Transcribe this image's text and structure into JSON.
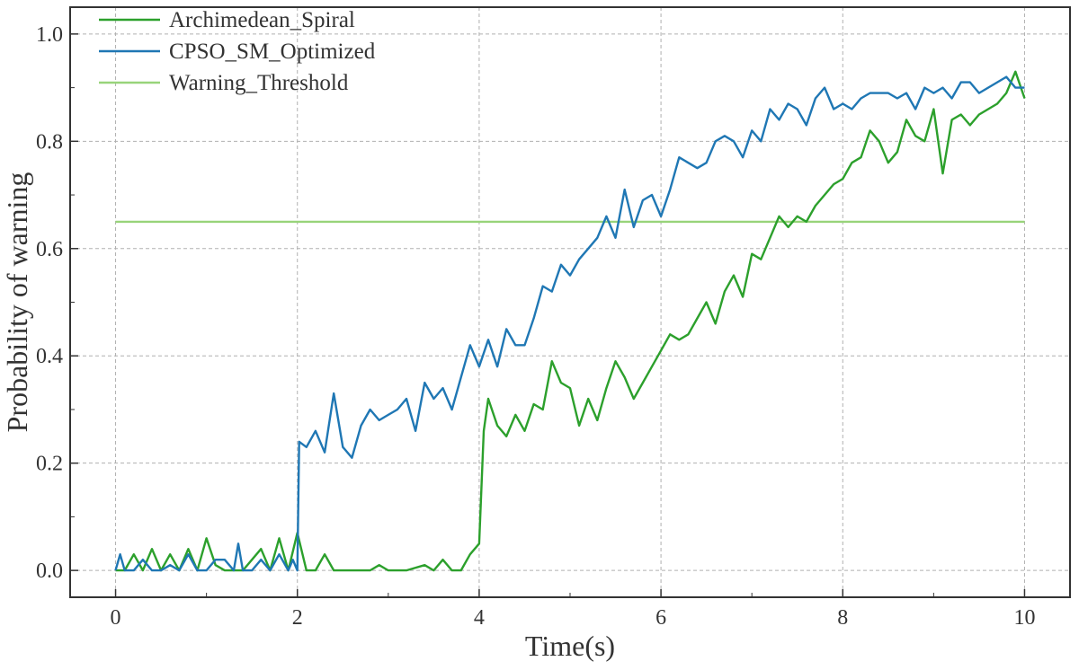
{
  "chart_data": {
    "type": "line",
    "title": "",
    "xlabel": "Time(s)",
    "ylabel": "Probability of warning",
    "xlim": [
      -0.5,
      10.5
    ],
    "ylim": [
      -0.05,
      1.05
    ],
    "xticks": [
      0,
      2,
      4,
      6,
      8,
      10
    ],
    "xtick_labels": [
      "0",
      "2",
      "4",
      "6",
      "8",
      "10"
    ],
    "yticks": [
      0.0,
      0.2,
      0.4,
      0.6,
      0.8,
      1.0
    ],
    "ytick_labels": [
      "0.0",
      "0.2",
      "0.4",
      "0.6",
      "0.8",
      "1.0"
    ],
    "grid": true,
    "legend_position": "top-left",
    "series": [
      {
        "name": "Archimedean_Spiral",
        "color": "#2ca02c",
        "points": [
          [
            0,
            0
          ],
          [
            0.1,
            0
          ],
          [
            0.2,
            0.03
          ],
          [
            0.3,
            0
          ],
          [
            0.4,
            0.04
          ],
          [
            0.5,
            0
          ],
          [
            0.6,
            0.03
          ],
          [
            0.7,
            0
          ],
          [
            0.8,
            0.04
          ],
          [
            0.9,
            0
          ],
          [
            1.0,
            0.06
          ],
          [
            1.1,
            0.01
          ],
          [
            1.2,
            0
          ],
          [
            1.3,
            0
          ],
          [
            1.4,
            0
          ],
          [
            1.5,
            0.02
          ],
          [
            1.6,
            0.04
          ],
          [
            1.7,
            0
          ],
          [
            1.8,
            0.06
          ],
          [
            1.9,
            0
          ],
          [
            2.0,
            0.07
          ],
          [
            2.1,
            0
          ],
          [
            2.2,
            0
          ],
          [
            2.3,
            0.03
          ],
          [
            2.4,
            0
          ],
          [
            2.6,
            0
          ],
          [
            2.8,
            0
          ],
          [
            2.9,
            0.01
          ],
          [
            3.0,
            0
          ],
          [
            3.2,
            0
          ],
          [
            3.4,
            0.01
          ],
          [
            3.5,
            0
          ],
          [
            3.6,
            0.02
          ],
          [
            3.7,
            0
          ],
          [
            3.8,
            0
          ],
          [
            3.9,
            0.03
          ],
          [
            4.0,
            0.05
          ],
          [
            4.05,
            0.26
          ],
          [
            4.1,
            0.32
          ],
          [
            4.2,
            0.27
          ],
          [
            4.3,
            0.25
          ],
          [
            4.4,
            0.29
          ],
          [
            4.5,
            0.26
          ],
          [
            4.6,
            0.31
          ],
          [
            4.7,
            0.3
          ],
          [
            4.8,
            0.39
          ],
          [
            4.9,
            0.35
          ],
          [
            5.0,
            0.34
          ],
          [
            5.1,
            0.27
          ],
          [
            5.2,
            0.32
          ],
          [
            5.3,
            0.28
          ],
          [
            5.4,
            0.34
          ],
          [
            5.5,
            0.39
          ],
          [
            5.6,
            0.36
          ],
          [
            5.7,
            0.32
          ],
          [
            5.8,
            0.35
          ],
          [
            5.9,
            0.38
          ],
          [
            6.0,
            0.41
          ],
          [
            6.1,
            0.44
          ],
          [
            6.2,
            0.43
          ],
          [
            6.3,
            0.44
          ],
          [
            6.4,
            0.47
          ],
          [
            6.5,
            0.5
          ],
          [
            6.6,
            0.46
          ],
          [
            6.7,
            0.52
          ],
          [
            6.8,
            0.55
          ],
          [
            6.9,
            0.51
          ],
          [
            7.0,
            0.59
          ],
          [
            7.1,
            0.58
          ],
          [
            7.2,
            0.62
          ],
          [
            7.3,
            0.66
          ],
          [
            7.4,
            0.64
          ],
          [
            7.5,
            0.66
          ],
          [
            7.6,
            0.65
          ],
          [
            7.7,
            0.68
          ],
          [
            7.8,
            0.7
          ],
          [
            7.9,
            0.72
          ],
          [
            8.0,
            0.73
          ],
          [
            8.1,
            0.76
          ],
          [
            8.2,
            0.77
          ],
          [
            8.3,
            0.82
          ],
          [
            8.4,
            0.8
          ],
          [
            8.5,
            0.76
          ],
          [
            8.6,
            0.78
          ],
          [
            8.7,
            0.84
          ],
          [
            8.8,
            0.81
          ],
          [
            8.9,
            0.8
          ],
          [
            9.0,
            0.86
          ],
          [
            9.1,
            0.74
          ],
          [
            9.2,
            0.84
          ],
          [
            9.3,
            0.85
          ],
          [
            9.4,
            0.83
          ],
          [
            9.5,
            0.85
          ],
          [
            9.6,
            0.86
          ],
          [
            9.7,
            0.87
          ],
          [
            9.8,
            0.89
          ],
          [
            9.9,
            0.93
          ],
          [
            10.0,
            0.88
          ]
        ]
      },
      {
        "name": "CPSO_SM_Optimized",
        "color": "#1f77b4",
        "points": [
          [
            0,
            0
          ],
          [
            0.05,
            0.03
          ],
          [
            0.1,
            0
          ],
          [
            0.2,
            0
          ],
          [
            0.3,
            0.02
          ],
          [
            0.4,
            0
          ],
          [
            0.5,
            0
          ],
          [
            0.6,
            0.01
          ],
          [
            0.7,
            0
          ],
          [
            0.8,
            0.03
          ],
          [
            0.9,
            0
          ],
          [
            1.0,
            0
          ],
          [
            1.1,
            0.02
          ],
          [
            1.2,
            0.02
          ],
          [
            1.3,
            0
          ],
          [
            1.35,
            0.05
          ],
          [
            1.4,
            0
          ],
          [
            1.5,
            0
          ],
          [
            1.6,
            0.02
          ],
          [
            1.7,
            0
          ],
          [
            1.8,
            0.03
          ],
          [
            1.9,
            0
          ],
          [
            1.95,
            0.02
          ],
          [
            2.0,
            0
          ],
          [
            2.02,
            0.24
          ],
          [
            2.1,
            0.23
          ],
          [
            2.2,
            0.26
          ],
          [
            2.3,
            0.22
          ],
          [
            2.4,
            0.33
          ],
          [
            2.5,
            0.23
          ],
          [
            2.6,
            0.21
          ],
          [
            2.7,
            0.27
          ],
          [
            2.8,
            0.3
          ],
          [
            2.9,
            0.28
          ],
          [
            3.0,
            0.29
          ],
          [
            3.1,
            0.3
          ],
          [
            3.2,
            0.32
          ],
          [
            3.3,
            0.26
          ],
          [
            3.4,
            0.35
          ],
          [
            3.5,
            0.32
          ],
          [
            3.6,
            0.34
          ],
          [
            3.7,
            0.3
          ],
          [
            3.8,
            0.36
          ],
          [
            3.9,
            0.42
          ],
          [
            4.0,
            0.38
          ],
          [
            4.1,
            0.43
          ],
          [
            4.2,
            0.38
          ],
          [
            4.3,
            0.45
          ],
          [
            4.4,
            0.42
          ],
          [
            4.5,
            0.42
          ],
          [
            4.6,
            0.47
          ],
          [
            4.7,
            0.53
          ],
          [
            4.8,
            0.52
          ],
          [
            4.9,
            0.57
          ],
          [
            5.0,
            0.55
          ],
          [
            5.1,
            0.58
          ],
          [
            5.2,
            0.6
          ],
          [
            5.3,
            0.62
          ],
          [
            5.4,
            0.66
          ],
          [
            5.5,
            0.62
          ],
          [
            5.6,
            0.71
          ],
          [
            5.7,
            0.64
          ],
          [
            5.8,
            0.69
          ],
          [
            5.9,
            0.7
          ],
          [
            6.0,
            0.66
          ],
          [
            6.1,
            0.71
          ],
          [
            6.2,
            0.77
          ],
          [
            6.3,
            0.76
          ],
          [
            6.4,
            0.75
          ],
          [
            6.5,
            0.76
          ],
          [
            6.6,
            0.8
          ],
          [
            6.7,
            0.81
          ],
          [
            6.8,
            0.8
          ],
          [
            6.9,
            0.77
          ],
          [
            7.0,
            0.82
          ],
          [
            7.1,
            0.8
          ],
          [
            7.2,
            0.86
          ],
          [
            7.3,
            0.84
          ],
          [
            7.4,
            0.87
          ],
          [
            7.5,
            0.86
          ],
          [
            7.6,
            0.83
          ],
          [
            7.7,
            0.88
          ],
          [
            7.8,
            0.9
          ],
          [
            7.9,
            0.86
          ],
          [
            8.0,
            0.87
          ],
          [
            8.1,
            0.86
          ],
          [
            8.2,
            0.88
          ],
          [
            8.3,
            0.89
          ],
          [
            8.4,
            0.89
          ],
          [
            8.5,
            0.89
          ],
          [
            8.6,
            0.88
          ],
          [
            8.7,
            0.89
          ],
          [
            8.8,
            0.86
          ],
          [
            8.9,
            0.9
          ],
          [
            9.0,
            0.89
          ],
          [
            9.1,
            0.9
          ],
          [
            9.2,
            0.88
          ],
          [
            9.3,
            0.91
          ],
          [
            9.4,
            0.91
          ],
          [
            9.5,
            0.89
          ],
          [
            9.6,
            0.9
          ],
          [
            9.7,
            0.91
          ],
          [
            9.8,
            0.92
          ],
          [
            9.9,
            0.9
          ],
          [
            10.0,
            0.9
          ]
        ]
      },
      {
        "name": "Warning_Threshold",
        "color": "#98d47a",
        "points": [
          [
            0,
            0.65
          ],
          [
            10,
            0.65
          ]
        ]
      }
    ]
  }
}
